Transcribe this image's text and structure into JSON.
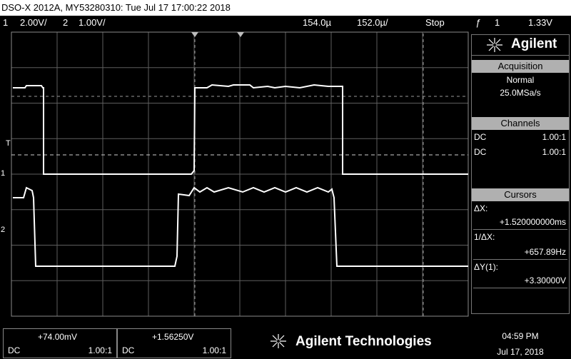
{
  "title_bar": {
    "text": "DSO-X 2012A, MY53280310: Tue Jul 17 17:00:22 2018"
  },
  "status": {
    "ch1_num": "1",
    "ch1_scale": "2.00V/",
    "ch2_num": "2",
    "ch2_scale": "1.00V/",
    "time_offset": "154.0µ",
    "time_scale": "152.0µ/",
    "run_state": "Stop",
    "trigger_icon": "ƒ",
    "trigger_source": "1",
    "trigger_level": "1.33V"
  },
  "markers": {
    "trigger": "T",
    "ch1": "1",
    "ch2": "2"
  },
  "panel": {
    "brand": "Agilent",
    "acquisition": {
      "header": "Acquisition",
      "mode": "Normal",
      "rate": "25.0MSa/s"
    },
    "channels": {
      "header": "Channels",
      "rows": [
        {
          "coupling": "DC",
          "probe": "1.00:1"
        },
        {
          "coupling": "DC",
          "probe": "1.00:1"
        }
      ]
    },
    "cursors": {
      "header": "Cursors",
      "dx_label": "ΔX:",
      "dx_value": "+1.520000000ms",
      "inv_dx_label": "1/ΔX:",
      "inv_dx_value": "+657.89Hz",
      "dy_label": "ΔY(1):",
      "dy_value": "+3.30000V"
    }
  },
  "bottom": {
    "ch1": {
      "value": "+74.00mV",
      "coupling": "DC",
      "probe": "1.00:1"
    },
    "ch2": {
      "value": "+1.56250V",
      "coupling": "DC",
      "probe": "1.00:1"
    },
    "brand": "Agilent Technologies",
    "time": "04:59 PM",
    "date": "Jul 17, 2018"
  },
  "colors": {
    "trace": "#ffffff",
    "grid": "#6a6a6a",
    "header_bg": "#b0b0b0"
  }
}
